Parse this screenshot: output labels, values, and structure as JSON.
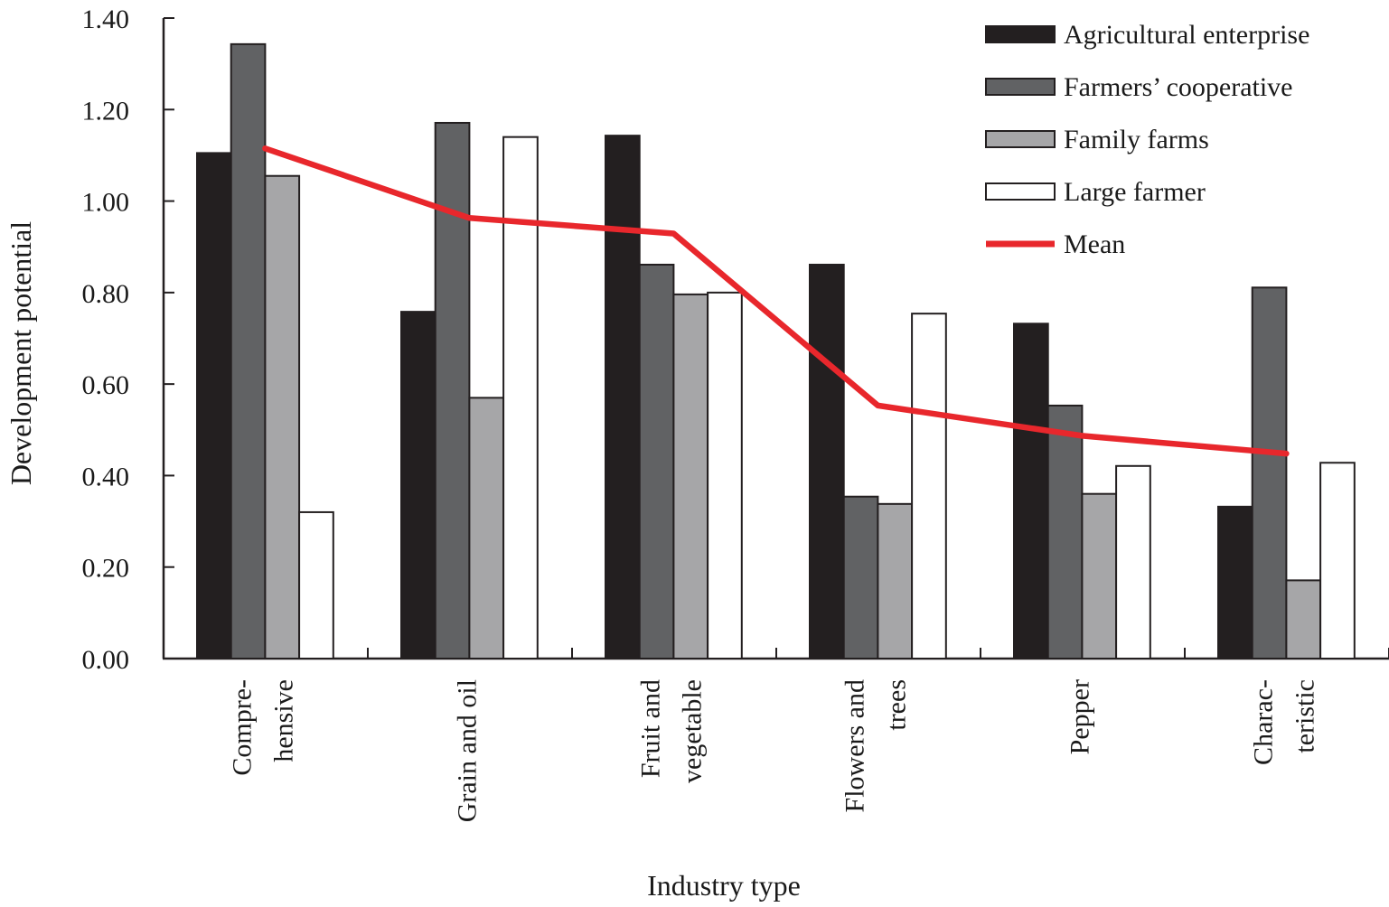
{
  "chart_data": {
    "type": "bar",
    "title": "",
    "xlabel": "Industry type",
    "ylabel": "Development potential",
    "ylim": [
      0,
      1.4
    ],
    "yticks": [
      "0.00",
      "0.20",
      "0.40",
      "0.60",
      "0.80",
      "1.00",
      "1.20",
      "1.40"
    ],
    "legend_position": "top-right",
    "grid": false,
    "categories": [
      [
        "Compre-",
        "hensive"
      ],
      [
        "Grain and oil"
      ],
      [
        "Fruit and",
        "vegetable"
      ],
      [
        "Flowers and",
        "trees"
      ],
      [
        "Pepper"
      ],
      [
        "Charac-",
        "teristic"
      ]
    ],
    "series": [
      {
        "name": "Agricultural enterprise",
        "color": "#231f20",
        "values": [
          1.105,
          0.758,
          1.143,
          0.861,
          0.732,
          0.332
        ]
      },
      {
        "name": "Farmers’ cooperative",
        "color": "#616264",
        "values": [
          1.343,
          1.171,
          0.861,
          0.354,
          0.553,
          0.811
        ]
      },
      {
        "name": "Family farms",
        "color": "#a6a6a8",
        "values": [
          1.055,
          0.57,
          0.796,
          0.338,
          0.36,
          0.171
        ]
      },
      {
        "name": "Large farmer",
        "color": "#ffffff",
        "values": [
          0.32,
          1.14,
          0.8,
          0.754,
          0.421,
          0.428
        ]
      }
    ],
    "line_series": {
      "name": "Mean",
      "color": "#e8272c",
      "values": [
        1.115,
        0.963,
        0.929,
        0.553,
        0.487,
        0.448
      ]
    }
  }
}
